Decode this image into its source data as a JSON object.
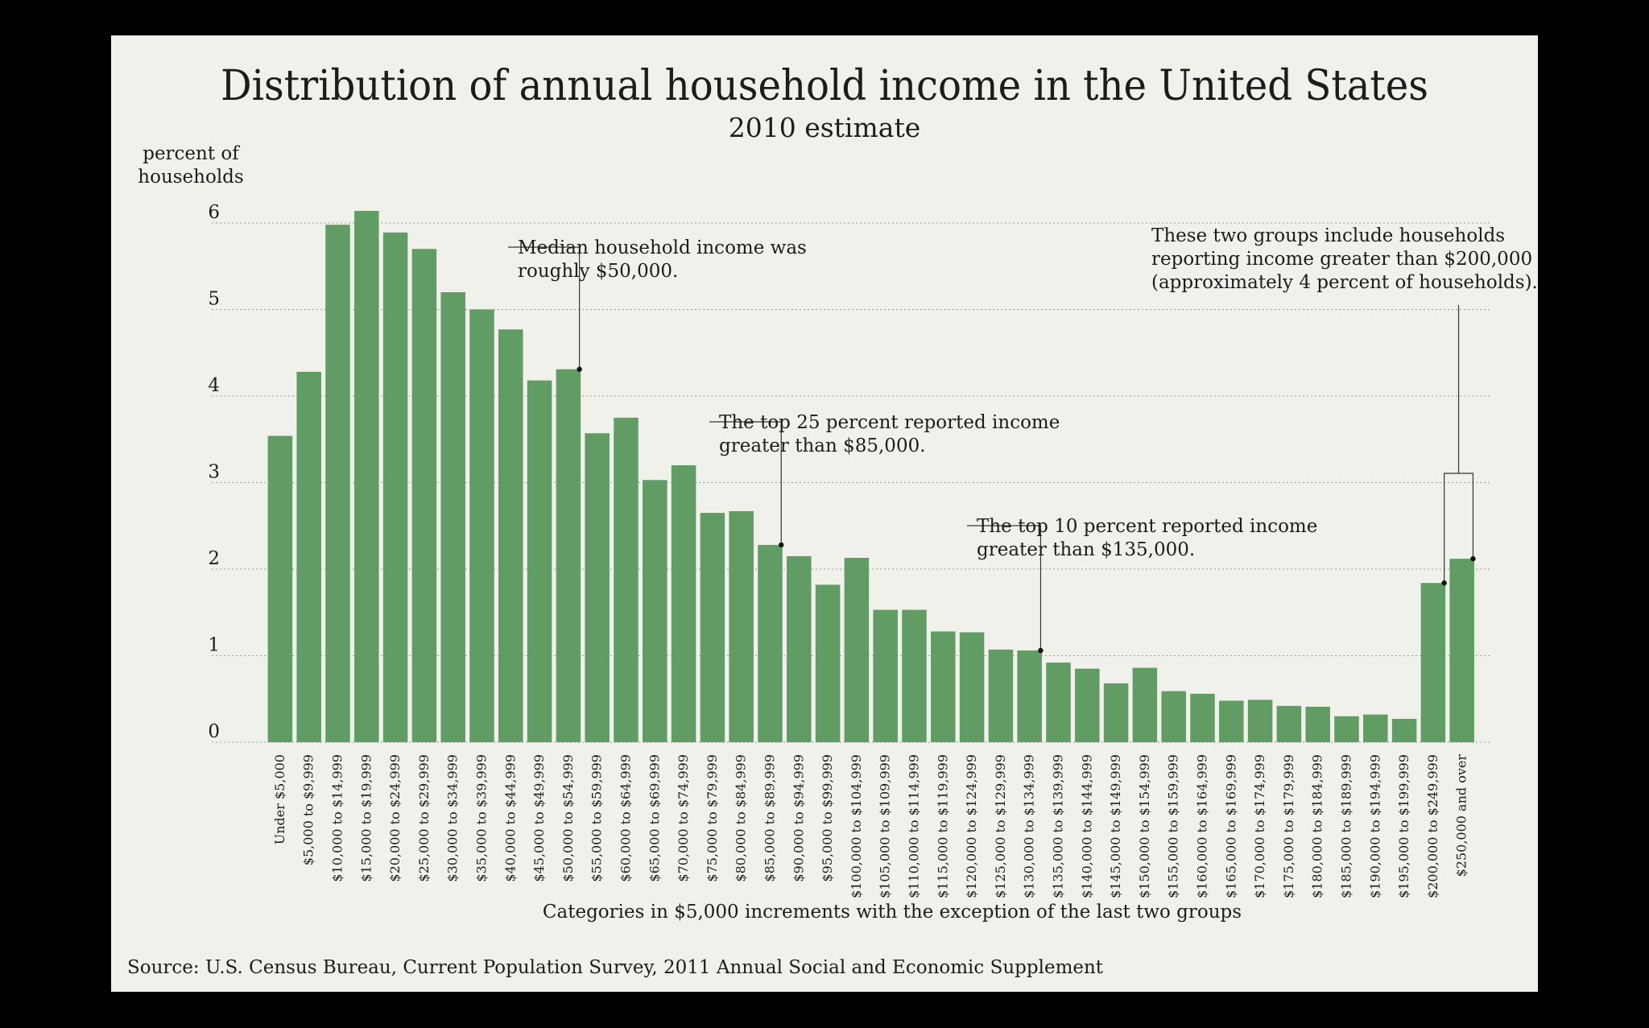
{
  "chart_data": {
    "type": "bar",
    "title": "Distribution of annual household income in the United States",
    "subtitle": "2010 estimate",
    "ylabel": [
      "percent of",
      "households"
    ],
    "xlabel": "Categories in $5,000 increments with the exception of the last two groups",
    "ylim": [
      0,
      6.1
    ],
    "yticks": [
      0,
      1,
      2,
      3,
      4,
      5,
      6
    ],
    "grid": true,
    "categories": [
      "Under $5,000",
      "$5,000 to $9,999",
      "$10,000 to $14,999",
      "$15,000 to $19,999",
      "$20,000 to $24,999",
      "$25,000 to $29,999",
      "$30,000 to $34,999",
      "$35,000 to $39,999",
      "$40,000 to $44,999",
      "$45,000 to $49,999",
      "$50,000 to $54,999",
      "$55,000 to $59,999",
      "$60,000 to $64,999",
      "$65,000 to $69,999",
      "$70,000 to $74,999",
      "$75,000 to $79,999",
      "$80,000 to $84,999",
      "$85,000 to $89,999",
      "$90,000 to $94,999",
      "$95,000 to $99,999",
      "$100,000 to $104,999",
      "$105,000 to $109,999",
      "$110,000 to $114,999",
      "$115,000 to $119,999",
      "$120,000 to $124,999",
      "$125,000 to $129,999",
      "$130,000 to $134,999",
      "$135,000 to $139,999",
      "$140,000 to $144,999",
      "$145,000 to $149,999",
      "$150,000 to $154,999",
      "$155,000 to $159,999",
      "$160,000 to $164,999",
      "$165,000 to $169,999",
      "$170,000 to $174,999",
      "$175,000 to $179,999",
      "$180,000 to $184,999",
      "$185,000 to $189,999",
      "$190,000 to $194,999",
      "$195,000 to $199,999",
      "$200,000 to $249,999",
      "$250,000 and over"
    ],
    "values": [
      3.54,
      4.28,
      5.98,
      6.14,
      5.89,
      5.7,
      5.2,
      5.0,
      4.77,
      4.18,
      4.31,
      3.57,
      3.75,
      3.03,
      3.2,
      2.65,
      2.67,
      2.28,
      2.15,
      1.82,
      2.13,
      1.53,
      1.53,
      1.28,
      1.27,
      1.07,
      1.06,
      0.92,
      0.85,
      0.68,
      0.86,
      0.59,
      0.56,
      0.48,
      0.49,
      0.42,
      0.41,
      0.3,
      0.32,
      0.27,
      1.84,
      2.12
    ],
    "annotations": [
      {
        "lines": [
          "Median household income was",
          "roughly $50,000."
        ],
        "category_index": 10
      },
      {
        "lines": [
          "The top 25 percent reported income",
          "greater than $85,000."
        ],
        "category_index": 17
      },
      {
        "lines": [
          "The top 10 percent reported income",
          "greater than $135,000."
        ],
        "category_index": 26
      },
      {
        "lines": [
          "These two groups include households",
          "reporting income greater than $200,000",
          "(approximately 4 percent of households)."
        ],
        "category_index": [
          40,
          41
        ]
      }
    ],
    "source": "Source: U.S. Census Bureau, Current Population Survey, 2011 Annual Social and Economic Supplement",
    "colors": {
      "bar": "#609c63",
      "background": "#f1f1ec",
      "frame": "#000000"
    }
  }
}
